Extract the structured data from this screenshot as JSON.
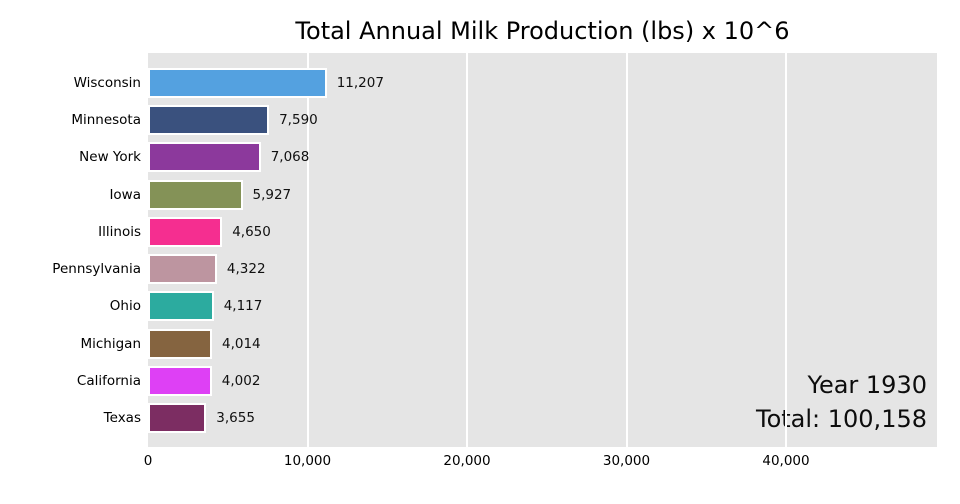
{
  "title": "Total Annual Milk Production (lbs) x 10^6",
  "annotation": {
    "year": "Year 1930",
    "total": "Total: 100,158"
  },
  "chart_data": {
    "type": "bar",
    "orientation": "horizontal",
    "title": "Total Annual Milk Production (lbs) x 10^6",
    "categories": [
      "Wisconsin",
      "Minnesota",
      "New York",
      "Iowa",
      "Illinois",
      "Pennsylvania",
      "Ohio",
      "Michigan",
      "California",
      "Texas"
    ],
    "values": [
      11207,
      7590,
      7068,
      5927,
      4650,
      4322,
      4117,
      4014,
      4002,
      3655
    ],
    "value_labels": [
      "11,207",
      "7,590",
      "7,068",
      "5,927",
      "4,650",
      "4,322",
      "4,117",
      "4,014",
      "4,002",
      "3,655"
    ],
    "bar_colors": [
      "#54a1e0",
      "#3a517e",
      "#8c399c",
      "#849257",
      "#f52e90",
      "#bd95a0",
      "#2cab9f",
      "#856440",
      "#de40f5",
      "#7c2d62"
    ],
    "bar_edge_color": "#ffffff",
    "xlim": [
      0,
      49470
    ],
    "x_ticks": [
      10000,
      20000,
      30000,
      40000
    ],
    "x_tick_labels": [
      "0",
      "10,000",
      "20,000",
      "30,000",
      "40,000"
    ],
    "x_tick_values": [
      0,
      10000,
      20000,
      30000,
      40000
    ],
    "xlabel": "",
    "ylabel": "",
    "grid": "vertical gridlines",
    "grid_color": "#ffffff",
    "plot_background": "#e5e5e5",
    "legend": "none",
    "annotations": [
      "Year 1930",
      "Total: 100,158"
    ]
  }
}
